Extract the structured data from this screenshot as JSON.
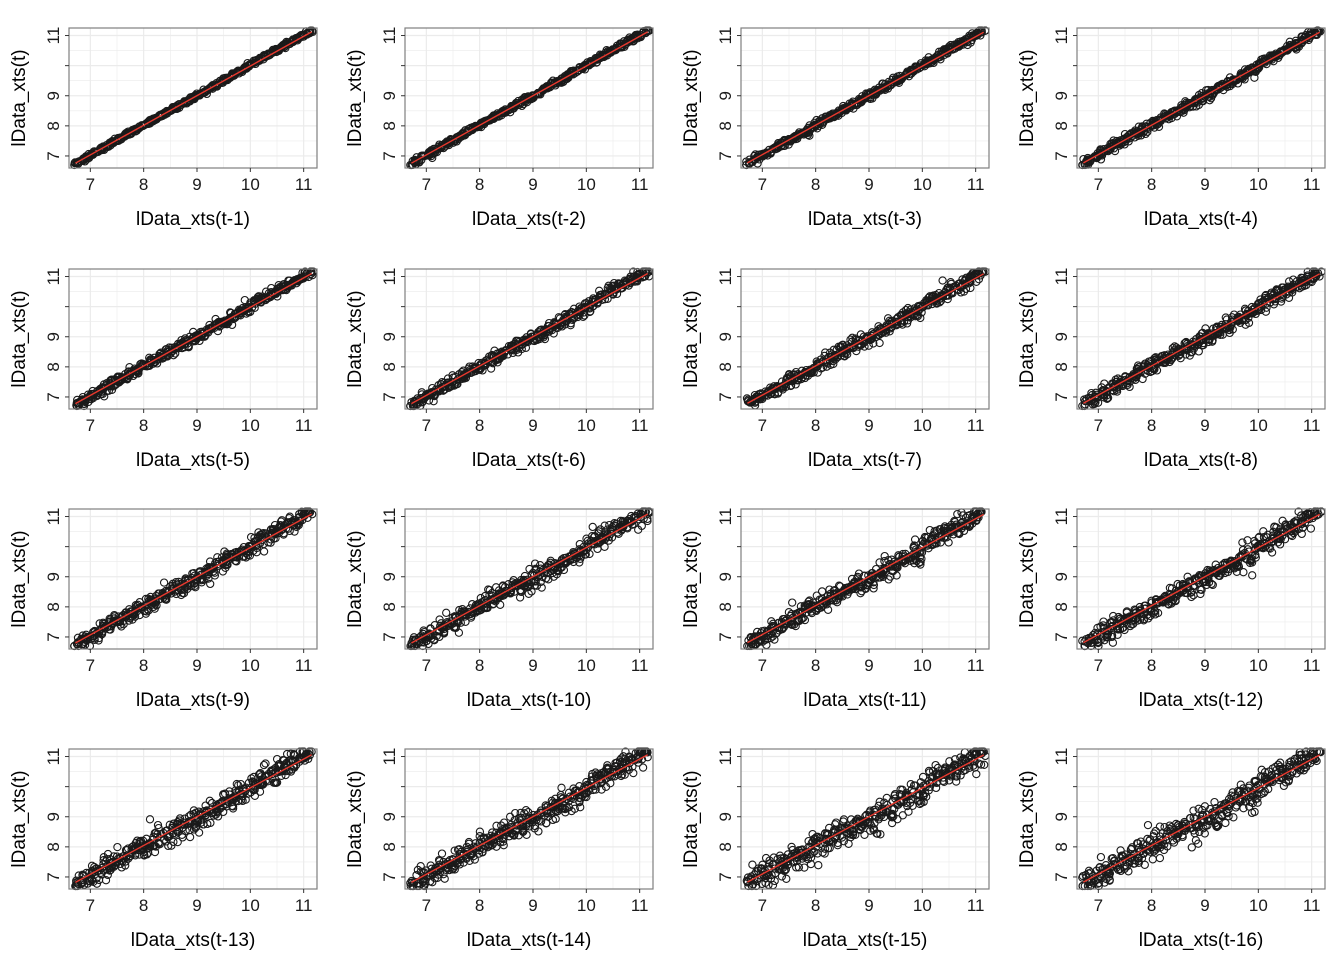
{
  "figure": {
    "type": "scatter",
    "grid": true,
    "xlim": [
      6.6,
      11.25
    ],
    "ylim": [
      6.6,
      11.25
    ],
    "xticks": [
      7,
      8,
      9,
      10,
      11
    ],
    "yticks": [
      7,
      8,
      9,
      11
    ],
    "points_color": "#1a1a1a",
    "fit_line_color": "#e8392e",
    "panel_border_color": "#7f7f7f",
    "grid_color": "#ebebeb"
  },
  "chart_data": [
    {
      "type": "scatter",
      "xlabel": "lData_xts(t-1)",
      "ylabel": "lData_xts(t)",
      "fit_line": {
        "x": [
          6.72,
          11.15
        ],
        "y": [
          6.76,
          11.12
        ]
      }
    },
    {
      "type": "scatter",
      "xlabel": "lData_xts(t-2)",
      "ylabel": "lData_xts(t)",
      "fit_line": {
        "x": [
          6.72,
          11.15
        ],
        "y": [
          6.76,
          11.12
        ]
      }
    },
    {
      "type": "scatter",
      "xlabel": "lData_xts(t-3)",
      "ylabel": "lData_xts(t)",
      "fit_line": {
        "x": [
          6.72,
          11.15
        ],
        "y": [
          6.77,
          11.11
        ]
      }
    },
    {
      "type": "scatter",
      "xlabel": "lData_xts(t-4)",
      "ylabel": "lData_xts(t)",
      "fit_line": {
        "x": [
          6.72,
          11.15
        ],
        "y": [
          6.77,
          11.11
        ]
      }
    },
    {
      "type": "scatter",
      "xlabel": "lData_xts(t-5)",
      "ylabel": "lData_xts(t)",
      "fit_line": {
        "x": [
          6.72,
          11.15
        ],
        "y": [
          6.78,
          11.1
        ]
      }
    },
    {
      "type": "scatter",
      "xlabel": "lData_xts(t-6)",
      "ylabel": "lData_xts(t)",
      "fit_line": {
        "x": [
          6.72,
          11.15
        ],
        "y": [
          6.78,
          11.1
        ]
      }
    },
    {
      "type": "scatter",
      "xlabel": "lData_xts(t-7)",
      "ylabel": "lData_xts(t)",
      "fit_line": {
        "x": [
          6.72,
          11.15
        ],
        "y": [
          6.79,
          11.09
        ]
      }
    },
    {
      "type": "scatter",
      "xlabel": "lData_xts(t-8)",
      "ylabel": "lData_xts(t)",
      "fit_line": {
        "x": [
          6.72,
          11.15
        ],
        "y": [
          6.79,
          11.09
        ]
      }
    },
    {
      "type": "scatter",
      "xlabel": "lData_xts(t-9)",
      "ylabel": "lData_xts(t)",
      "fit_line": {
        "x": [
          6.72,
          11.15
        ],
        "y": [
          6.8,
          11.08
        ]
      }
    },
    {
      "type": "scatter",
      "xlabel": "lData_xts(t-10)",
      "ylabel": "lData_xts(t)",
      "fit_line": {
        "x": [
          6.72,
          11.15
        ],
        "y": [
          6.8,
          11.08
        ]
      }
    },
    {
      "type": "scatter",
      "xlabel": "lData_xts(t-11)",
      "ylabel": "lData_xts(t)",
      "fit_line": {
        "x": [
          6.72,
          11.15
        ],
        "y": [
          6.81,
          11.07
        ]
      }
    },
    {
      "type": "scatter",
      "xlabel": "lData_xts(t-12)",
      "ylabel": "lData_xts(t)",
      "fit_line": {
        "x": [
          6.72,
          11.15
        ],
        "y": [
          6.81,
          11.07
        ]
      }
    },
    {
      "type": "scatter",
      "xlabel": "lData_xts(t-13)",
      "ylabel": "lData_xts(t)",
      "fit_line": {
        "x": [
          6.72,
          11.15
        ],
        "y": [
          6.82,
          11.06
        ]
      }
    },
    {
      "type": "scatter",
      "xlabel": "lData_xts(t-14)",
      "ylabel": "lData_xts(t)",
      "fit_line": {
        "x": [
          6.72,
          11.15
        ],
        "y": [
          6.82,
          11.06
        ]
      }
    },
    {
      "type": "scatter",
      "xlabel": "lData_xts(t-15)",
      "ylabel": "lData_xts(t)",
      "fit_line": {
        "x": [
          6.72,
          11.15
        ],
        "y": [
          6.83,
          11.05
        ]
      }
    },
    {
      "type": "scatter",
      "xlabel": "lData_xts(t-16)",
      "ylabel": "lData_xts(t)",
      "fit_line": {
        "x": [
          6.72,
          11.15
        ],
        "y": [
          6.83,
          11.05
        ]
      }
    }
  ]
}
